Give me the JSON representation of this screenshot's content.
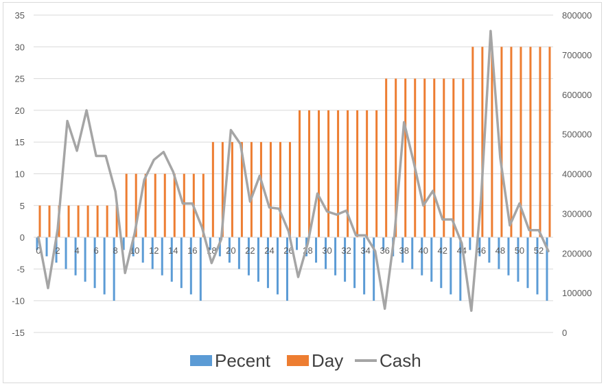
{
  "chart_data": {
    "type": "bar",
    "title": "",
    "x": [
      0,
      1,
      2,
      3,
      4,
      5,
      6,
      7,
      8,
      9,
      10,
      11,
      12,
      13,
      14,
      15,
      16,
      17,
      18,
      19,
      20,
      21,
      22,
      23,
      24,
      25,
      26,
      27,
      28,
      29,
      30,
      31,
      32,
      33,
      34,
      35,
      36,
      37,
      38,
      39,
      40,
      41,
      42,
      43,
      44,
      45,
      46,
      47,
      48,
      49,
      50,
      51,
      52,
      53
    ],
    "x_tick_labels": [
      "0",
      "2",
      "4",
      "6",
      "8",
      "10",
      "12",
      "14",
      "16",
      "18",
      "20",
      "22",
      "24",
      "26",
      "28",
      "30",
      "32",
      "34",
      "36",
      "38",
      "40",
      "42",
      "44",
      "46",
      "48",
      "50",
      "52"
    ],
    "y_left": {
      "min": -15,
      "max": 35,
      "ticks": [
        "-15",
        "-10",
        "-5",
        "0",
        "5",
        "10",
        "15",
        "20",
        "25",
        "30",
        "35"
      ]
    },
    "y_right": {
      "min": 0,
      "max": 800000,
      "ticks": [
        "0",
        "100000",
        "200000",
        "300000",
        "400000",
        "500000",
        "600000",
        "700000",
        "800000"
      ]
    },
    "grid": true,
    "legend_position": "bottom",
    "series": [
      {
        "name": "Pecent",
        "type": "bar",
        "axis": "left",
        "color": "#5b9bd5",
        "values": [
          -2,
          -3,
          -4,
          -5,
          -6,
          -7,
          -8,
          -9,
          -10,
          -2,
          -3,
          -4,
          -5,
          -6,
          -7,
          -8,
          -9,
          -10,
          -2,
          -3,
          -4,
          -5,
          -6,
          -7,
          -8,
          -9,
          -10,
          -2,
          -3,
          -4,
          -5,
          -6,
          -7,
          -8,
          -9,
          -10,
          -2,
          -3,
          -4,
          -5,
          -6,
          -7,
          -8,
          -9,
          -10,
          -2,
          -3,
          -4,
          -5,
          -6,
          -7,
          -8,
          -9,
          -10
        ]
      },
      {
        "name": "Day",
        "type": "bar",
        "axis": "left",
        "color": "#ed7d31",
        "values": [
          5,
          5,
          5,
          5,
          5,
          5,
          5,
          5,
          5,
          10,
          10,
          10,
          10,
          10,
          10,
          10,
          10,
          10,
          15,
          15,
          15,
          15,
          15,
          15,
          15,
          15,
          15,
          20,
          20,
          20,
          20,
          20,
          20,
          20,
          20,
          20,
          25,
          25,
          25,
          25,
          25,
          25,
          25,
          25,
          25,
          30,
          30,
          30,
          30,
          30,
          30,
          30,
          30,
          30
        ]
      },
      {
        "name": "Cash",
        "type": "line",
        "axis": "right",
        "color": "#a5a5a5",
        "values": [
          240000,
          112000,
          260000,
          533000,
          458000,
          560000,
          445000,
          445000,
          355000,
          150000,
          250000,
          385000,
          435000,
          455000,
          405000,
          325000,
          325000,
          265000,
          175000,
          235000,
          510000,
          475000,
          330000,
          395000,
          315000,
          312000,
          255000,
          140000,
          225000,
          350000,
          305000,
          297000,
          307000,
          245000,
          245000,
          205000,
          60000,
          245000,
          530000,
          430000,
          320000,
          357000,
          285000,
          285000,
          225000,
          55000,
          335000,
          760000,
          440000,
          270000,
          325000,
          258000,
          258000,
          205000
        ]
      }
    ]
  }
}
